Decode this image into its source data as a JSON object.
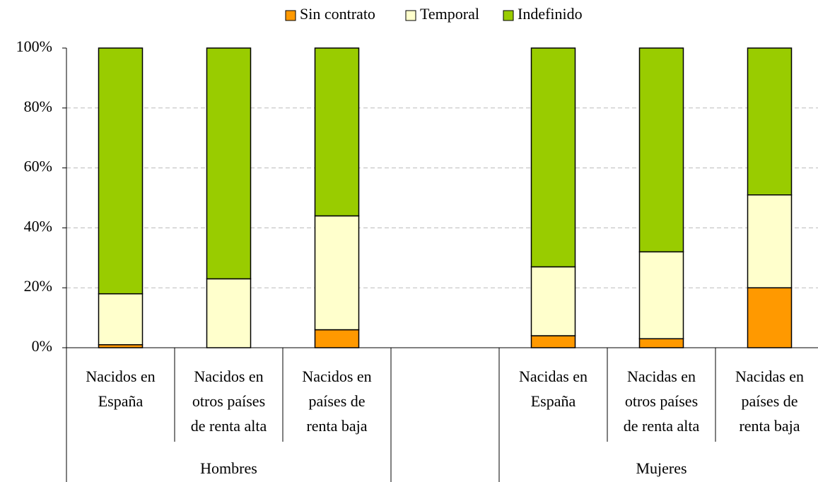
{
  "chart_data": {
    "type": "stacked_bar",
    "categories": [
      [
        "Nacidos en",
        "España"
      ],
      [
        "Nacidos en",
        "otros países",
        "de renta alta"
      ],
      [
        "Nacidos en",
        "países de",
        "renta baja"
      ],
      null,
      [
        "Nacidas en",
        "España"
      ],
      [
        "Nacidas en",
        "otros países",
        "de renta alta"
      ],
      [
        "Nacidas en",
        "países de",
        "renta baja"
      ]
    ],
    "group_labels": [
      "Hombres",
      "Mujeres"
    ],
    "series": [
      {
        "name": "Sin contrato",
        "color": "#ff9900",
        "values": [
          1,
          0,
          6,
          null,
          4,
          3,
          20
        ]
      },
      {
        "name": "Temporal",
        "color": "#ffffcc",
        "values": [
          17,
          23,
          38,
          null,
          23,
          29,
          31
        ]
      },
      {
        "name": "Indefinido",
        "color": "#99cc00",
        "values": [
          82,
          77,
          56,
          null,
          73,
          68,
          49
        ]
      }
    ],
    "ylim": [
      0,
      100
    ],
    "yticks": [
      {
        "value": 0,
        "label": "0%"
      },
      {
        "value": 20,
        "label": "20%"
      },
      {
        "value": 40,
        "label": "40%"
      },
      {
        "value": 60,
        "label": "60%"
      },
      {
        "value": 80,
        "label": "80%"
      },
      {
        "value": 100,
        "label": "100%"
      }
    ],
    "grid": true
  }
}
